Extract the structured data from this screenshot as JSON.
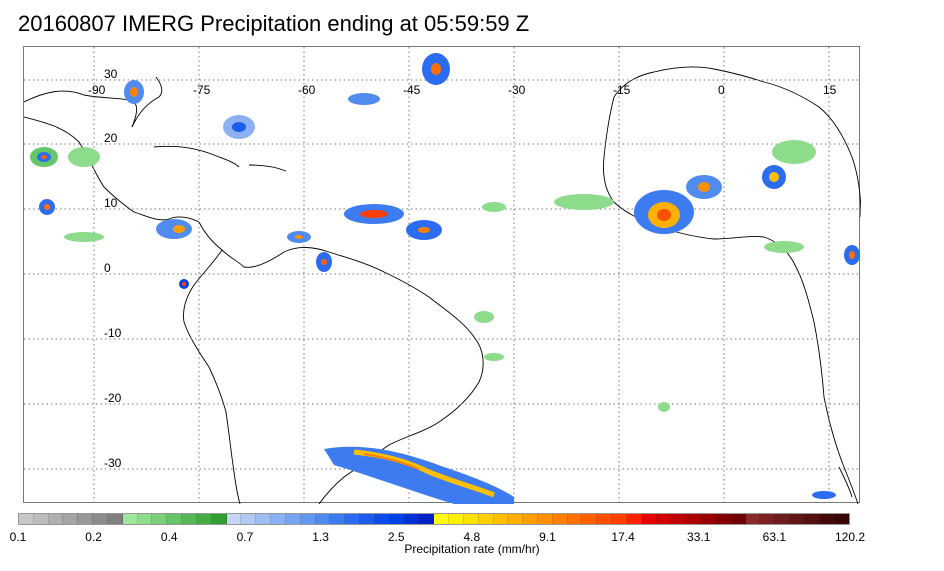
{
  "title": "20160807 IMERG Precipitation ending at 05:59:59 Z",
  "map": {
    "lon_labels": [
      "-90",
      "-75",
      "-60",
      "-45",
      "-30",
      "-15",
      "0",
      "15"
    ],
    "lat_labels": [
      "30",
      "20",
      "10",
      "0",
      "-10",
      "-20",
      "-30"
    ],
    "grid": "dotted"
  },
  "colorbar": {
    "label": "Precipitation rate (mm/hr)",
    "tick_labels": [
      "0.1",
      "0.2",
      "0.4",
      "0.7",
      "1.3",
      "2.5",
      "4.8",
      "9.1",
      "17.4",
      "33.1",
      "63.1",
      "120.2"
    ],
    "colors": [
      "#c8c8c8",
      "#bcbcbc",
      "#b0b0b0",
      "#a4a4a4",
      "#989898",
      "#8c8c8c",
      "#808080",
      "#9ee89e",
      "#8cdc8c",
      "#7ad07a",
      "#68c468",
      "#56b856",
      "#44ac44",
      "#329e32",
      "#c8d4f4",
      "#b4c8f4",
      "#a0bcf4",
      "#8cb0f4",
      "#78a4f4",
      "#6498f0",
      "#508cf0",
      "#3c7cf0",
      "#2c6cf0",
      "#1c5cec",
      "#0c4cec",
      "#0040e8",
      "#0030d8",
      "#0020c8",
      "#ffff00",
      "#fff000",
      "#ffe000",
      "#ffd000",
      "#ffc000",
      "#ffb000",
      "#ffa000",
      "#ff9000",
      "#ff8000",
      "#ff7000",
      "#ff6000",
      "#ff5000",
      "#ff4000",
      "#ff2000",
      "#e80000",
      "#d40000",
      "#c00000",
      "#ac0000",
      "#980000",
      "#840000",
      "#700000",
      "#8a2a2a",
      "#7c2222",
      "#6e1c1c",
      "#601616",
      "#521010",
      "#440a0a",
      "#380606"
    ]
  }
}
